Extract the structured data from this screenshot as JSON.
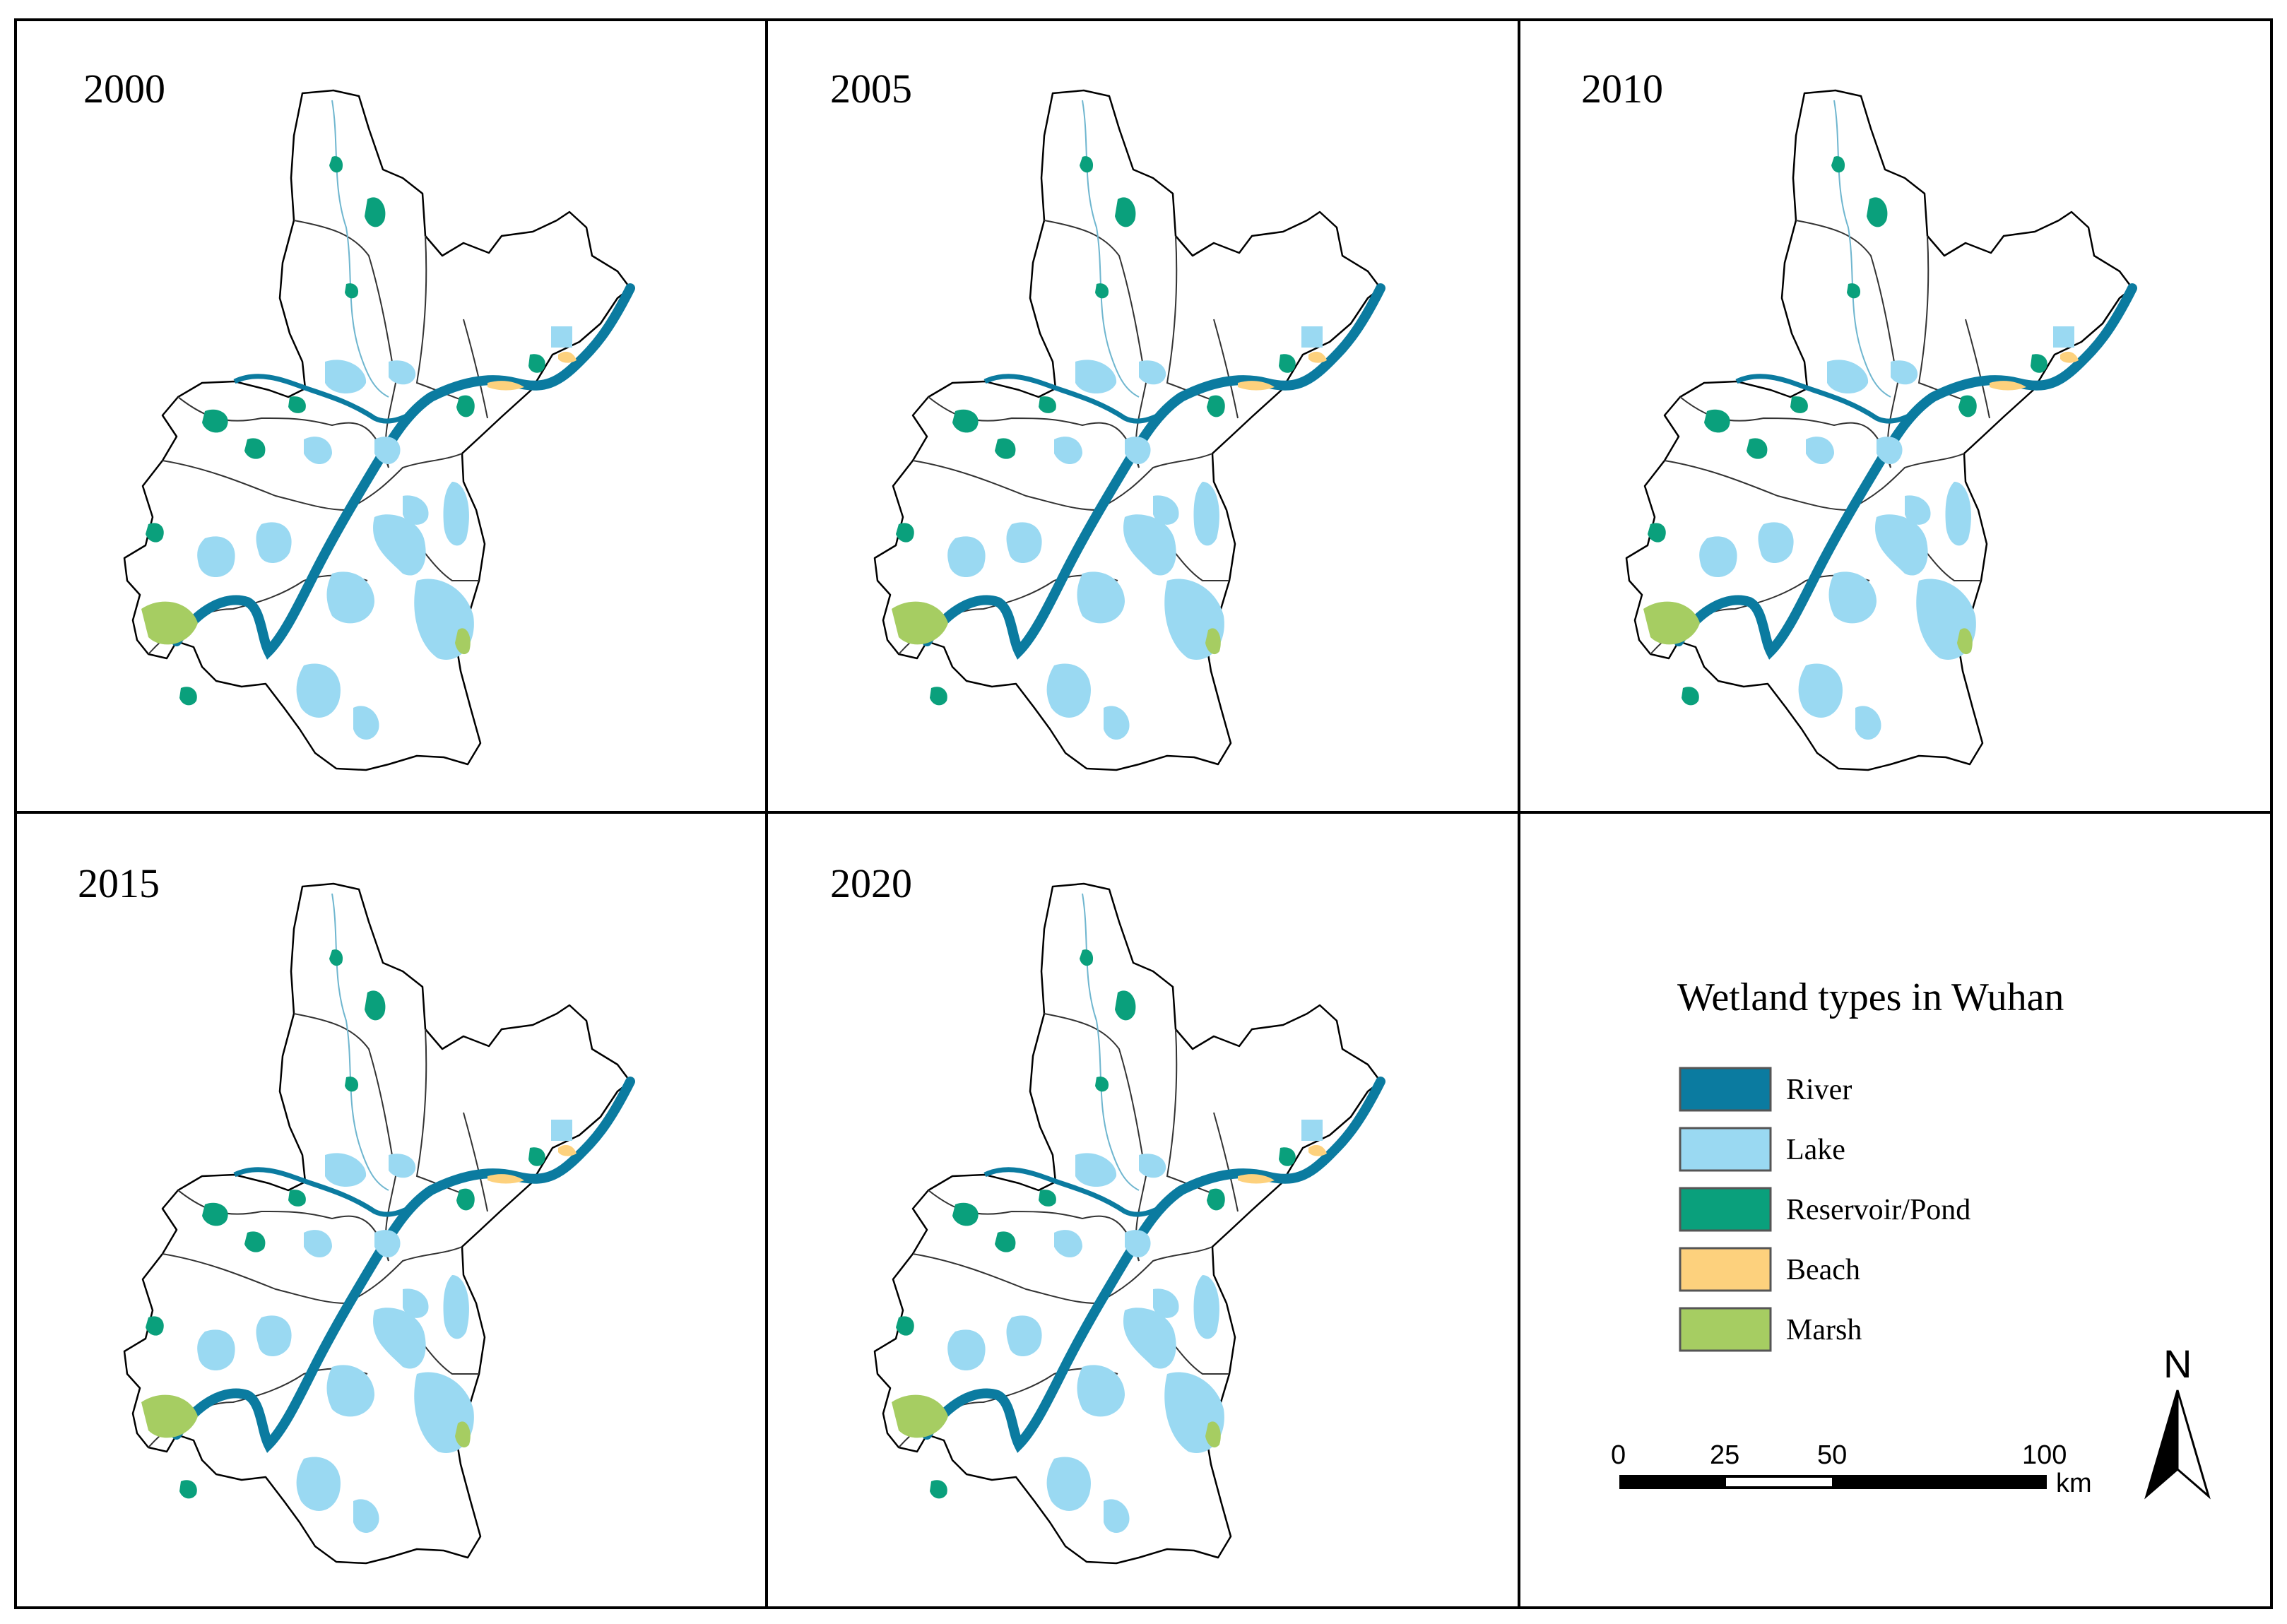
{
  "panels": [
    {
      "year": "2000"
    },
    {
      "year": "2005"
    },
    {
      "year": "2010"
    },
    {
      "year": "2015"
    },
    {
      "year": "2020"
    }
  ],
  "legend": {
    "title": "Wetland types in Wuhan",
    "items": [
      {
        "label": "River",
        "color": "#0b7ba0"
      },
      {
        "label": "Lake",
        "color": "#9ad9f2"
      },
      {
        "label": "Reservoir/Pond",
        "color": "#0aa07c"
      },
      {
        "label": "Beach",
        "color": "#fdd17d"
      },
      {
        "label": "Marsh",
        "color": "#a6cd62"
      }
    ]
  },
  "scale_bar": {
    "ticks": [
      "0",
      "25",
      "50",
      "100"
    ],
    "unit": "km"
  },
  "north_arrow": {
    "label": "N"
  },
  "colors": {
    "outline": "#000000",
    "boundary": "#333333"
  }
}
